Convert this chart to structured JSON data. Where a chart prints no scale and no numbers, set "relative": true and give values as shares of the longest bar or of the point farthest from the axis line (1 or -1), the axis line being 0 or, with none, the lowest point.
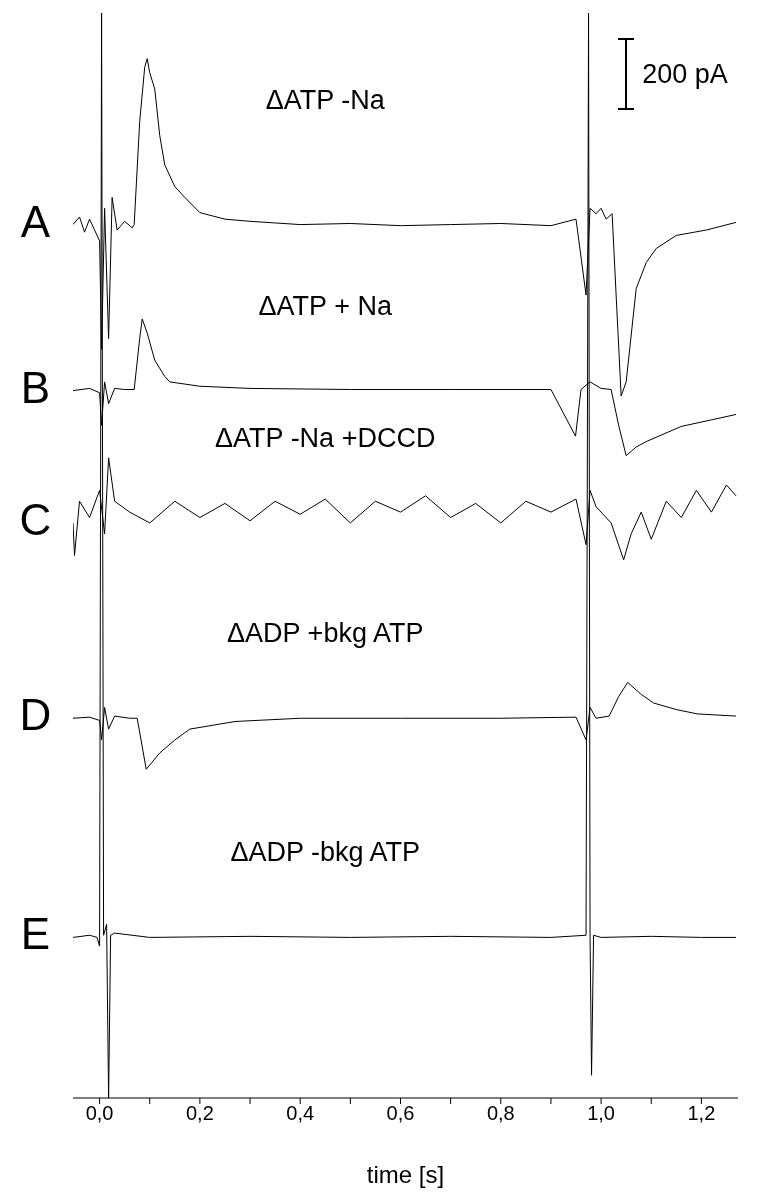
{
  "chart_data": {
    "type": "line",
    "relative": true,
    "xlabel": "time [s]",
    "xlim": [
      -0.053,
      1.273
    ],
    "xticks": [
      {
        "value": 0,
        "label": "0,0"
      },
      {
        "value": 0.1,
        "label": null
      },
      {
        "value": 0.2,
        "label": "0,2"
      },
      {
        "value": 0.3,
        "label": null
      },
      {
        "value": 0.4,
        "label": "0,4"
      },
      {
        "value": 0.5,
        "label": null
      },
      {
        "value": 0.6,
        "label": "0,6"
      },
      {
        "value": 0.7,
        "label": null
      },
      {
        "value": 0.8,
        "label": "0,8"
      },
      {
        "value": 0.9,
        "label": null
      },
      {
        "value": 1,
        "label": "1,0"
      },
      {
        "value": 1.1,
        "label": null
      },
      {
        "value": 1.2,
        "label": "1,2"
      }
    ],
    "tick_labels": "x",
    "annotations": [
      "ΔATP -Na",
      "ΔATP + Na",
      "ΔATP -Na +DCCD",
      "ΔADP +bkg ATP",
      "ΔADP -bkg ATP",
      "200 pA"
    ],
    "series": [
      {
        "name": "A",
        "color": "#000000",
        "x": [
          -0.053,
          -0.04,
          -0.03,
          -0.02,
          -0.01,
          0.0,
          0.004,
          0.01,
          0.018,
          0.025,
          0.035,
          0.05,
          0.065,
          0.069,
          0.08,
          0.09,
          0.095,
          0.1,
          0.11,
          0.12,
          0.13,
          0.15,
          0.17,
          0.2,
          0.25,
          0.3,
          0.4,
          0.5,
          0.6,
          0.7,
          0.8,
          0.9,
          0.95,
          0.97,
          0.978,
          0.99,
          1.0,
          1.01,
          1.022,
          1.03,
          1.04,
          1.05,
          1.07,
          1.09,
          1.11,
          1.15,
          1.21,
          1.269
        ],
        "values": [
          0.805,
          0.812,
          0.798,
          0.81,
          0.8,
          0.79,
          0.69,
          0.82,
          0.7,
          0.83,
          0.8,
          0.808,
          0.802,
          0.805,
          0.9,
          0.95,
          0.958,
          0.945,
          0.93,
          0.887,
          0.86,
          0.84,
          0.83,
          0.816,
          0.81,
          0.808,
          0.805,
          0.806,
          0.804,
          0.805,
          0.806,
          0.804,
          0.81,
          0.74,
          0.82,
          0.815,
          0.82,
          0.81,
          0.815,
          0.74,
          0.647,
          0.66,
          0.746,
          0.77,
          0.783,
          0.795,
          0.8,
          0.807
        ]
      },
      {
        "name": "B",
        "color": "#000000",
        "x": [
          -0.053,
          -0.02,
          0.0,
          0.004,
          0.01,
          0.018,
          0.03,
          0.05,
          0.069,
          0.08,
          0.085,
          0.095,
          0.11,
          0.13,
          0.14,
          0.2,
          0.3,
          0.5,
          0.7,
          0.9,
          0.949,
          0.96,
          0.978,
          1.0,
          1.02,
          1.035,
          1.05,
          1.07,
          1.09,
          1.16,
          1.22,
          1.269
        ],
        "values": [
          0.652,
          0.654,
          0.65,
          0.62,
          0.66,
          0.64,
          0.654,
          0.653,
          0.653,
          0.7,
          0.718,
          0.705,
          0.68,
          0.665,
          0.66,
          0.656,
          0.654,
          0.653,
          0.653,
          0.653,
          0.61,
          0.653,
          0.66,
          0.654,
          0.653,
          0.62,
          0.592,
          0.6,
          0.605,
          0.619,
          0.625,
          0.63
        ]
      },
      {
        "name": "C",
        "color": "#000000",
        "x": [
          -0.053,
          -0.05,
          -0.04,
          -0.02,
          0.0,
          0.01,
          0.018,
          0.03,
          0.06,
          0.1,
          0.15,
          0.2,
          0.25,
          0.3,
          0.35,
          0.4,
          0.45,
          0.5,
          0.55,
          0.6,
          0.65,
          0.7,
          0.75,
          0.8,
          0.85,
          0.9,
          0.95,
          0.97,
          0.978,
          0.99,
          1.02,
          1.045,
          1.06,
          1.08,
          1.1,
          1.13,
          1.16,
          1.19,
          1.22,
          1.25,
          1.269
        ],
        "values": [
          0.53,
          0.5,
          0.55,
          0.535,
          0.56,
          0.52,
          0.59,
          0.55,
          0.54,
          0.53,
          0.55,
          0.535,
          0.548,
          0.532,
          0.55,
          0.538,
          0.552,
          0.53,
          0.55,
          0.54,
          0.555,
          0.535,
          0.548,
          0.53,
          0.55,
          0.54,
          0.552,
          0.51,
          0.56,
          0.545,
          0.53,
          0.496,
          0.52,
          0.54,
          0.515,
          0.55,
          0.535,
          0.56,
          0.54,
          0.565,
          0.555
        ]
      },
      {
        "name": "D",
        "color": "#000000",
        "x": [
          -0.053,
          -0.02,
          0.0,
          0.004,
          0.01,
          0.018,
          0.03,
          0.06,
          0.075,
          0.093,
          0.12,
          0.15,
          0.18,
          0.27,
          0.4,
          0.6,
          0.8,
          0.95,
          0.97,
          0.978,
          0.99,
          1.016,
          1.035,
          1.053,
          1.08,
          1.105,
          1.15,
          1.192,
          1.269
        ],
        "values": [
          0.35,
          0.351,
          0.348,
          0.33,
          0.36,
          0.34,
          0.352,
          0.35,
          0.35,
          0.303,
          0.318,
          0.33,
          0.34,
          0.347,
          0.35,
          0.35,
          0.35,
          0.351,
          0.33,
          0.36,
          0.35,
          0.352,
          0.37,
          0.383,
          0.372,
          0.364,
          0.358,
          0.354,
          0.352
        ]
      },
      {
        "name": "E",
        "color": "#000000",
        "x": [
          -0.053,
          -0.02,
          -0.005,
          0.0,
          0.004,
          0.008,
          0.014,
          0.018,
          0.022,
          0.03,
          0.1,
          0.3,
          0.5,
          0.7,
          0.9,
          0.97,
          0.975,
          0.978,
          0.981,
          0.985,
          1.0,
          1.1,
          1.2,
          1.269
        ],
        "values": [
          0.148,
          0.15,
          0.148,
          0.14,
          1,
          0.15,
          0.16,
          0,
          0.15,
          0.152,
          0.148,
          0.149,
          0.148,
          0.149,
          0.148,
          0.15,
          1,
          0.148,
          0.021,
          0.15,
          0.148,
          0.149,
          0.148,
          0.148
        ]
      }
    ]
  }
}
